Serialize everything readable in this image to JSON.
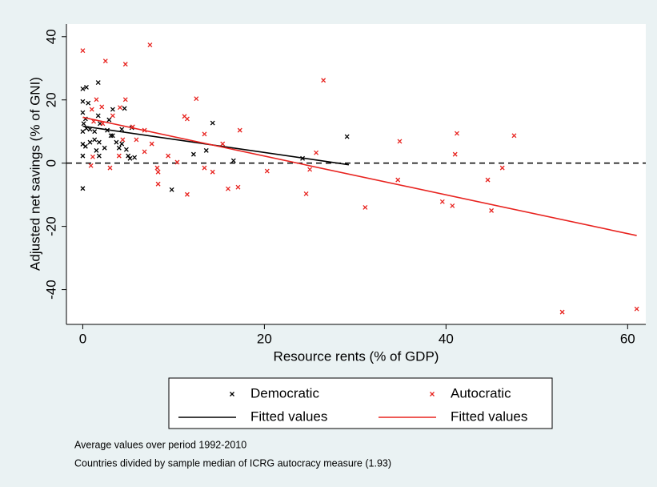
{
  "chart_data": {
    "type": "scatter",
    "x_label": "Resource rents (% of GDP)",
    "y_label": "Adjusted net savings (% of GNI)",
    "xlim": [
      -1.8,
      62
    ],
    "ylim": [
      -51,
      44
    ],
    "xticks": [
      0,
      20,
      40,
      60
    ],
    "yticks": [
      -40,
      -20,
      0,
      20,
      40
    ],
    "yline": 0,
    "notes": [
      "Average values over period 1992-2010",
      "Countries divided by sample median of ICRG autocracy measure (1.93)"
    ],
    "series": [
      {
        "name": "Democratic",
        "type": "scatter",
        "color": "#000000",
        "x": [
          0,
          0,
          0,
          0,
          0,
          0.4,
          1.7,
          0.6,
          0.3,
          0.1,
          0.4,
          0.8,
          1.3,
          0,
          0.3,
          0.8,
          1.3,
          1.8,
          1.5,
          1.8,
          2.4,
          2.7,
          2.9,
          3.3,
          3.3,
          3.7,
          4,
          4.3,
          4.3,
          4.6,
          4.8,
          5,
          5.2,
          5.4,
          5.7,
          1.7,
          1.9,
          3.1,
          0,
          9.8,
          12.2,
          13.6,
          14.3,
          16.6,
          24.2,
          29.1
        ],
        "values": [
          -8,
          10,
          16,
          19.5,
          23.5,
          24,
          25.5,
          19,
          14,
          12.5,
          11,
          10.7,
          10,
          6,
          5.3,
          6.6,
          7.4,
          6.6,
          4,
          2.3,
          4.8,
          10.4,
          13.7,
          17,
          8.7,
          6.6,
          4.8,
          10.7,
          6.1,
          17.3,
          4.3,
          2.3,
          1.5,
          11.2,
          1.8,
          15,
          12.5,
          8.7,
          2.3,
          -8.4,
          2.8,
          4,
          12.7,
          0.8,
          1.5,
          8.4
        ]
      },
      {
        "name": "Autocratic",
        "type": "scatter",
        "color": "#e8231f",
        "x": [
          0,
          2.5,
          4.7,
          7.4,
          26.5,
          12.5,
          4.7,
          1.5,
          4.1,
          1,
          2.1,
          3.3,
          1.2,
          2.2,
          11.2,
          11.5,
          5.5,
          6.8,
          17.3,
          4.4,
          7.6,
          6.8,
          4,
          9.4,
          0.9,
          3,
          8.2,
          8.3,
          10.4,
          13.4,
          14.3,
          13.4,
          15.4,
          8.3,
          11.5,
          16,
          17.1,
          20.3,
          24.6,
          25,
          25.7,
          31.1,
          34.7,
          34.9,
          39.6,
          40.7,
          41.2,
          41,
          44.6,
          45,
          46.2,
          47.5,
          52.8,
          61,
          1.1,
          5.9
        ],
        "values": [
          35.6,
          32.3,
          31.3,
          37.4,
          26.2,
          20.4,
          20.1,
          20.1,
          17.6,
          17,
          17.8,
          15,
          13.2,
          12.5,
          14.8,
          14,
          11.5,
          10.4,
          10.4,
          7.4,
          6.1,
          3.6,
          2.3,
          2.3,
          -0.8,
          -1.5,
          -1.5,
          -2.8,
          0.3,
          -1.5,
          -2.8,
          9.2,
          6.1,
          -6.6,
          -9.9,
          -8.1,
          -7.6,
          -2.5,
          -9.7,
          -2,
          3.3,
          -14,
          -5.3,
          6.9,
          -12.2,
          -13.5,
          9.4,
          2.8,
          -5.3,
          -15,
          -1.5,
          8.7,
          -47.1,
          -46.1,
          2,
          7.4
        ]
      },
      {
        "name": "Fitted values",
        "type": "line",
        "color": "#000000",
        "x": [
          0,
          29.3
        ],
        "values": [
          11.7,
          -0.5
        ]
      },
      {
        "name": "Fitted values",
        "type": "line",
        "color": "#e8231f",
        "x": [
          0,
          61
        ],
        "values": [
          14.5,
          -22.9
        ]
      }
    ]
  }
}
